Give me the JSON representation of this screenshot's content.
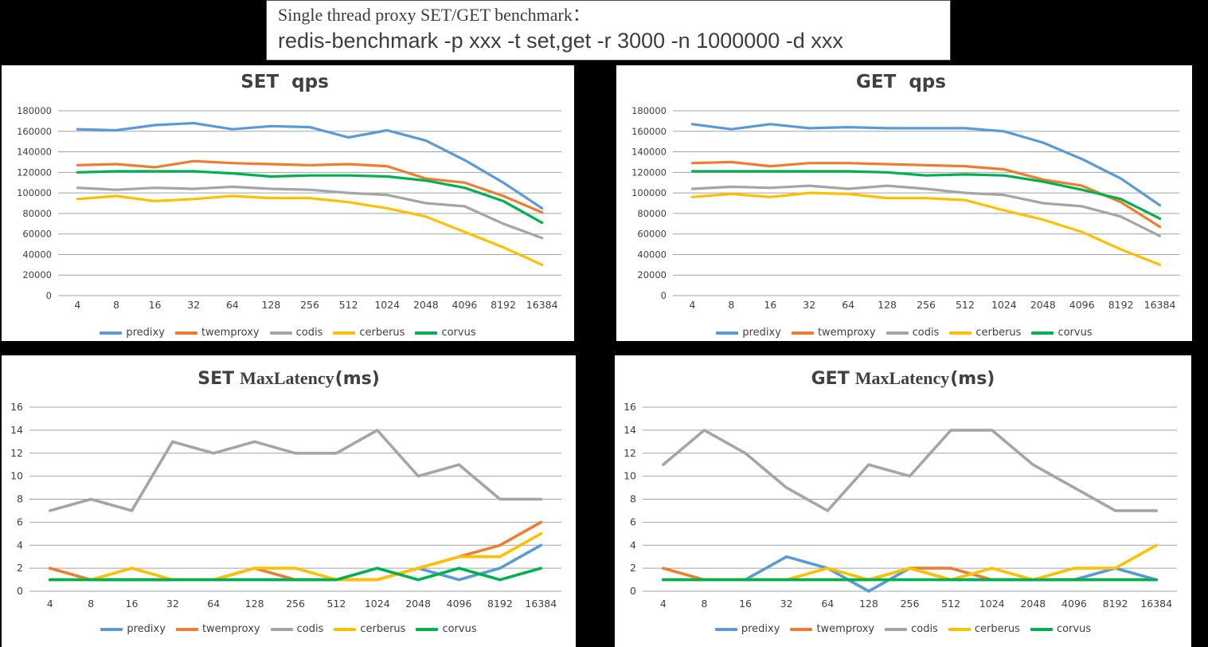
{
  "page": {
    "background": "#000000"
  },
  "header": {
    "line1": "Single thread proxy SET/GET benchmark：",
    "line2": "redis-benchmark -p xxx -t set,get -r 3000 -n 1000000 -d xxx"
  },
  "palette": {
    "predixy": "#5B9BD5",
    "twemproxy": "#ED7D31",
    "codis": "#A5A5A5",
    "cerberus": "#FFC000",
    "corvus": "#00B050",
    "grid": "#A3A3A3",
    "text": "#3F3F3F"
  },
  "categories": [
    "4",
    "8",
    "16",
    "32",
    "64",
    "128",
    "256",
    "512",
    "1024",
    "2048",
    "4096",
    "8192",
    "16384"
  ],
  "legend": [
    "predixy",
    "twemproxy",
    "codis",
    "cerberus",
    "corvus"
  ],
  "chart_data": [
    {
      "id": "set_qps",
      "type": "line",
      "title": {
        "pre": "SET  qps",
        "serif": "",
        "post": ""
      },
      "xlabel": "",
      "ylabel": "",
      "ylim": [
        0,
        180000
      ],
      "ystep": 20000,
      "grid": true,
      "legend_position": "bottom",
      "yticks": [
        "180000",
        "160000",
        "140000",
        "120000",
        "100000",
        "80000",
        "60000",
        "40000",
        "20000",
        "0"
      ],
      "series": [
        {
          "name": "predixy",
          "values": [
            162000,
            161000,
            166000,
            168000,
            162000,
            165000,
            164000,
            154000,
            161000,
            151000,
            132000,
            110000,
            85000
          ]
        },
        {
          "name": "twemproxy",
          "values": [
            127000,
            128000,
            125000,
            131000,
            129000,
            128000,
            127000,
            128000,
            126000,
            114000,
            110000,
            97000,
            81000
          ]
        },
        {
          "name": "codis",
          "values": [
            105000,
            103000,
            105000,
            104000,
            106000,
            104000,
            103000,
            100000,
            98000,
            90000,
            87000,
            70000,
            56000
          ]
        },
        {
          "name": "cerberus",
          "values": [
            94000,
            97000,
            92000,
            94000,
            97000,
            95000,
            95000,
            91000,
            85000,
            77000,
            62000,
            47000,
            30000
          ]
        },
        {
          "name": "corvus",
          "values": [
            120000,
            121000,
            121000,
            121000,
            119000,
            116000,
            117000,
            117000,
            116000,
            112000,
            105000,
            92000,
            71000
          ]
        }
      ]
    },
    {
      "id": "get_qps",
      "type": "line",
      "title": {
        "pre": "GET  qps",
        "serif": "",
        "post": ""
      },
      "xlabel": "",
      "ylabel": "",
      "ylim": [
        0,
        180000
      ],
      "ystep": 20000,
      "grid": true,
      "legend_position": "bottom",
      "yticks": [
        "180000",
        "160000",
        "140000",
        "120000",
        "100000",
        "80000",
        "60000",
        "40000",
        "20000",
        "0"
      ],
      "series": [
        {
          "name": "predixy",
          "values": [
            167000,
            162000,
            167000,
            163000,
            164000,
            163000,
            163000,
            163000,
            160000,
            149000,
            133000,
            114000,
            88000
          ]
        },
        {
          "name": "twemproxy",
          "values": [
            129000,
            130000,
            126000,
            129000,
            129000,
            128000,
            127000,
            126000,
            123000,
            113000,
            107000,
            91000,
            67000
          ]
        },
        {
          "name": "codis",
          "values": [
            104000,
            106000,
            105000,
            107000,
            104000,
            107000,
            104000,
            100000,
            98000,
            90000,
            87000,
            77000,
            58000
          ]
        },
        {
          "name": "cerberus",
          "values": [
            96000,
            99000,
            96000,
            100000,
            99000,
            95000,
            95000,
            93000,
            83000,
            74000,
            62000,
            45000,
            30000
          ]
        },
        {
          "name": "corvus",
          "values": [
            121000,
            121000,
            121000,
            121000,
            121000,
            120000,
            117000,
            118000,
            117000,
            111000,
            103000,
            94000,
            75000
          ]
        }
      ]
    },
    {
      "id": "set_latency",
      "type": "line",
      "title": {
        "pre": "SET",
        "serif": "MaxLatency",
        "post": "(ms)"
      },
      "xlabel": "",
      "ylabel": "",
      "ylim": [
        0,
        16
      ],
      "ystep": 2,
      "grid": true,
      "legend_position": "bottom",
      "yticks": [
        "16",
        "14",
        "12",
        "10",
        "8",
        "6",
        "4",
        "2",
        "0"
      ],
      "series": [
        {
          "name": "predixy",
          "values": [
            1,
            1,
            1,
            1,
            1,
            1,
            1,
            1,
            1,
            2,
            1,
            2,
            4
          ]
        },
        {
          "name": "twemproxy",
          "values": [
            2,
            1,
            1,
            1,
            1,
            2,
            1,
            1,
            1,
            2,
            3,
            4,
            6
          ]
        },
        {
          "name": "codis",
          "values": [
            7,
            8,
            7,
            13,
            12,
            13,
            12,
            12,
            14,
            10,
            11,
            8,
            8
          ]
        },
        {
          "name": "cerberus",
          "values": [
            1,
            1,
            2,
            1,
            1,
            2,
            2,
            1,
            1,
            2,
            3,
            3,
            5
          ]
        },
        {
          "name": "corvus",
          "values": [
            1,
            1,
            1,
            1,
            1,
            1,
            1,
            1,
            2,
            1,
            2,
            1,
            2
          ]
        }
      ]
    },
    {
      "id": "get_latency",
      "type": "line",
      "title": {
        "pre": "GET",
        "serif": "MaxLatency",
        "post": "(ms)"
      },
      "xlabel": "",
      "ylabel": "",
      "ylim": [
        0,
        16
      ],
      "ystep": 2,
      "grid": true,
      "legend_position": "bottom",
      "yticks": [
        "16",
        "14",
        "12",
        "10",
        "8",
        "6",
        "4",
        "2",
        "0"
      ],
      "series": [
        {
          "name": "predixy",
          "values": [
            1,
            1,
            1,
            3,
            2,
            0,
            2,
            1,
            1,
            1,
            1,
            2,
            1
          ]
        },
        {
          "name": "twemproxy",
          "values": [
            2,
            1,
            1,
            1,
            1,
            1,
            2,
            2,
            1,
            1,
            1,
            1,
            1
          ]
        },
        {
          "name": "codis",
          "values": [
            11,
            14,
            12,
            9,
            7,
            11,
            10,
            14,
            14,
            11,
            9,
            7,
            7
          ]
        },
        {
          "name": "cerberus",
          "values": [
            1,
            1,
            1,
            1,
            2,
            1,
            2,
            1,
            2,
            1,
            2,
            2,
            4
          ]
        },
        {
          "name": "corvus",
          "values": [
            1,
            1,
            1,
            1,
            1,
            1,
            1,
            1,
            1,
            1,
            1,
            1,
            1
          ]
        }
      ]
    }
  ]
}
